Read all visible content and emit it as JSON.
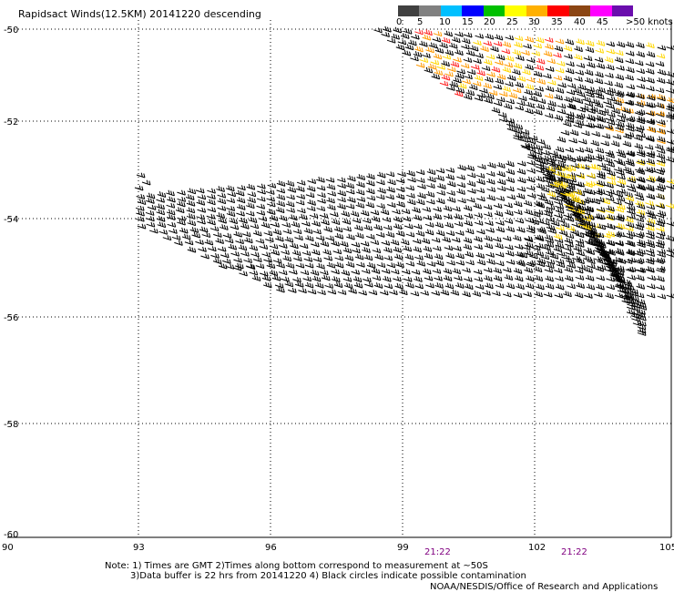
{
  "title": "Rapidsact Winds(12.5KM) 20141220 descending",
  "legend": {
    "labels": [
      "0",
      "5",
      "10",
      "15",
      "20",
      "25",
      "30",
      "35",
      "40",
      "45",
      ">50 knots"
    ],
    "colors": [
      "#404040",
      "#808080",
      "#00c0ff",
      "#0000ff",
      "#00c000",
      "#ffff00",
      "#ffb000",
      "#ff0000",
      "#8b4513",
      "#ff00ff",
      "#6a0dad"
    ]
  },
  "axes": {
    "lat_labels": [
      "-50",
      "-52",
      "-54",
      "-56",
      "-58",
      "-60"
    ],
    "lon_labels": [
      "90",
      "93",
      "96",
      "99",
      "102",
      "105"
    ]
  },
  "time_labels": [
    "21:22",
    "21:22"
  ],
  "notes": [
    "Note: 1) Times are GMT 2)Times along bottom correspond to measurement at ~50S",
    "3)Data buffer is 22 hrs from 20141220 4) Black circles indicate possible contamination"
  ],
  "credit": "NOAA/NESDIS/Office of Research and Applications",
  "colors": {
    "barb_default": "#000000",
    "barb_yellow": "#ffd700",
    "barb_orange": "#ff9900",
    "barb_red": "#ff2020",
    "time_label": "#800080",
    "grid": "#000000"
  }
}
